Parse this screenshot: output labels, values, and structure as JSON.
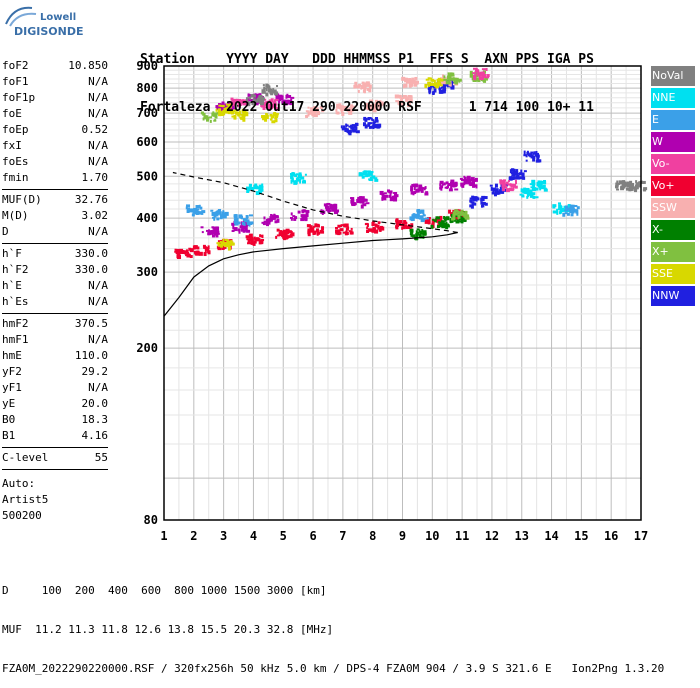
{
  "logo": {
    "line1": "Lowell",
    "line2": "DIGISONDE"
  },
  "header": {
    "line1": "Station    YYYY DAY   DDD HHMMSS P1  FFS S  AXN PPS IGA PS",
    "line2": "Fortaleza  2022 Out17 290 220000 RSF      1 714 100 10+ 11"
  },
  "params": {
    "group1": [
      {
        "k": "foF2",
        "v": "10.850"
      },
      {
        "k": "foF1",
        "v": "N/A"
      },
      {
        "k": "foF1p",
        "v": "N/A"
      },
      {
        "k": "foE",
        "v": "N/A"
      },
      {
        "k": "foEp",
        "v": "0.52"
      },
      {
        "k": "fxI",
        "v": "N/A"
      },
      {
        "k": "foEs",
        "v": "N/A"
      },
      {
        "k": "fmin",
        "v": "1.70"
      }
    ],
    "group2": [
      {
        "k": "MUF(D)",
        "v": "32.76"
      },
      {
        "k": "M(D)",
        "v": "3.02"
      },
      {
        "k": "D",
        "v": "N/A"
      }
    ],
    "group3": [
      {
        "k": "h`F",
        "v": "330.0"
      },
      {
        "k": "h`F2",
        "v": "330.0"
      },
      {
        "k": "h`E",
        "v": "N/A"
      },
      {
        "k": "h`Es",
        "v": "N/A"
      }
    ],
    "group4": [
      {
        "k": "hmF2",
        "v": "370.5"
      },
      {
        "k": "hmF1",
        "v": "N/A"
      },
      {
        "k": "hmE",
        "v": "110.0"
      },
      {
        "k": "yF2",
        "v": "29.2"
      },
      {
        "k": "yF1",
        "v": "N/A"
      },
      {
        "k": "yE",
        "v": "20.0"
      },
      {
        "k": "B0",
        "v": "18.3"
      },
      {
        "k": "B1",
        "v": "4.16"
      }
    ],
    "group5": [
      {
        "k": "C-level",
        "v": "55"
      }
    ],
    "notes": [
      "Auto:",
      "Artist5",
      "500200"
    ]
  },
  "legend": [
    {
      "label": "NoVal",
      "color": "#808080"
    },
    {
      "label": "NNE",
      "color": "#00e0f0"
    },
    {
      "label": "E",
      "color": "#3ba0e8"
    },
    {
      "label": "W",
      "color": "#b000b0"
    },
    {
      "label": "Vo-",
      "color": "#f040a0"
    },
    {
      "label": "Vo+",
      "color": "#f00030"
    },
    {
      "label": "SSW",
      "color": "#f8b0b0"
    },
    {
      "label": "X-",
      "color": "#008000"
    },
    {
      "label": "X+",
      "color": "#80c040"
    },
    {
      "label": "SSE",
      "color": "#d8d800"
    },
    {
      "label": "NNW",
      "color": "#2020e0"
    }
  ],
  "footer": {
    "line1": "D     100  200  400  600  800 1000 1500 3000 [km]",
    "line2": "MUF  11.2 11.3 11.8 12.6 13.8 15.5 20.3 32.8 [MHz]",
    "line3": "FZA0M_2022290220000.RSF / 320fx256h 50 kHz 5.0 km / DPS-4 FZA0M 904 / 3.9 S 321.6 E   Ion2Png 1.3.20"
  },
  "chart_data": {
    "type": "scatter",
    "xlim": [
      1,
      17
    ],
    "ylim": [
      80,
      900
    ],
    "y_scale": "log",
    "x_ticks": [
      1,
      2,
      3,
      4,
      5,
      6,
      7,
      8,
      9,
      10,
      11,
      12,
      13,
      14,
      15,
      16,
      17
    ],
    "y_ticks": [
      80,
      200,
      300,
      400,
      500,
      600,
      700,
      800,
      900
    ],
    "grid": true,
    "series": [
      {
        "color": "#b000b0",
        "points": [
          [
            2.5,
            375
          ],
          [
            3.5,
            385
          ],
          [
            4.5,
            400
          ],
          [
            5.5,
            410
          ],
          [
            6.5,
            425
          ],
          [
            7.5,
            440
          ],
          [
            8.5,
            455
          ],
          [
            9.5,
            470
          ],
          [
            10.5,
            480
          ],
          [
            11.2,
            490
          ],
          [
            3,
            730
          ],
          [
            4,
            760
          ],
          [
            5,
            760
          ]
        ]
      },
      {
        "color": "#f00030",
        "points": [
          [
            1.6,
            335
          ],
          [
            2.2,
            340
          ],
          [
            3,
            350
          ],
          [
            4,
            360
          ],
          [
            5,
            370
          ],
          [
            6,
            380
          ],
          [
            7,
            380
          ],
          [
            8,
            385
          ],
          [
            9,
            390
          ],
          [
            10,
            395
          ],
          [
            10.8,
            410
          ]
        ]
      },
      {
        "color": "#008000",
        "points": [
          [
            9.5,
            370
          ],
          [
            10.2,
            395
          ],
          [
            10.8,
            405
          ]
        ]
      },
      {
        "color": "#2020e0",
        "points": [
          [
            11.5,
            440
          ],
          [
            12.2,
            470
          ],
          [
            12.8,
            510
          ],
          [
            13.3,
            560
          ],
          [
            10.1,
            805
          ],
          [
            10.4,
            825
          ],
          [
            7.2,
            650
          ],
          [
            7.9,
            670
          ]
        ]
      },
      {
        "color": "#00e0f0",
        "points": [
          [
            13.2,
            460
          ],
          [
            13.5,
            480
          ],
          [
            14.3,
            425
          ],
          [
            7.8,
            505
          ],
          [
            5.5,
            500
          ],
          [
            4,
            470
          ]
        ]
      },
      {
        "color": "#3ba0e8",
        "points": [
          [
            2,
            420
          ],
          [
            2.8,
            410
          ],
          [
            3.6,
            400
          ],
          [
            9.5,
            410
          ],
          [
            14.6,
            420
          ]
        ]
      },
      {
        "color": "#f8b0b0",
        "points": [
          [
            6,
            710
          ],
          [
            7,
            720
          ],
          [
            8,
            735
          ],
          [
            9,
            755
          ],
          [
            7.6,
            810
          ],
          [
            9.2,
            830
          ],
          [
            10.5,
            840
          ]
        ]
      },
      {
        "color": "#d8d800",
        "points": [
          [
            3,
            720
          ],
          [
            3.5,
            700
          ],
          [
            4.5,
            690
          ],
          [
            10,
            830
          ],
          [
            3,
            350
          ]
        ]
      },
      {
        "color": "#80c040",
        "points": [
          [
            10.6,
            850
          ],
          [
            11.5,
            860
          ],
          [
            2.5,
            690
          ],
          [
            10.9,
            410
          ]
        ]
      },
      {
        "color": "#f040a0",
        "points": [
          [
            3.5,
            745
          ],
          [
            4.5,
            740
          ],
          [
            11.6,
            870
          ],
          [
            12.5,
            480
          ]
        ]
      },
      {
        "color": "#808080",
        "points": [
          [
            4,
            760
          ],
          [
            4.5,
            800
          ],
          [
            16.4,
            480
          ],
          [
            16.8,
            478
          ]
        ]
      }
    ],
    "profile_curve": [
      [
        1,
        237
      ],
      [
        1.5,
        262
      ],
      [
        2,
        292
      ],
      [
        2.5,
        310
      ],
      [
        3,
        322
      ],
      [
        3.5,
        329
      ],
      [
        4,
        334
      ],
      [
        5,
        340
      ],
      [
        6,
        345
      ],
      [
        7,
        350
      ],
      [
        8,
        355
      ],
      [
        9,
        358
      ],
      [
        10,
        362
      ],
      [
        10.5,
        366
      ],
      [
        10.85,
        370.5
      ],
      [
        10.5,
        374
      ],
      [
        10,
        378
      ],
      [
        9,
        386
      ],
      [
        8,
        394
      ],
      [
        7,
        404
      ],
      [
        6,
        418
      ],
      [
        5,
        438
      ],
      [
        4,
        462
      ],
      [
        3,
        483
      ],
      [
        2,
        498
      ],
      [
        1.3,
        510
      ]
    ]
  }
}
